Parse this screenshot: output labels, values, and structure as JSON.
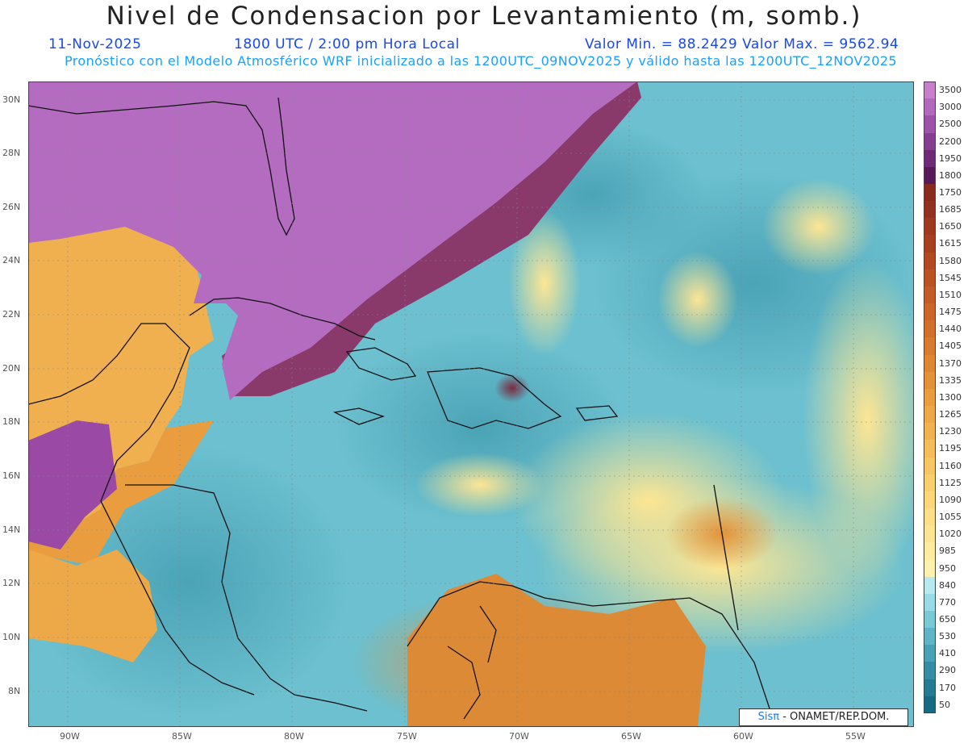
{
  "header": {
    "title": "Nivel de Condensacion por Levantamiento (m, somb.)",
    "date": "11-Nov-2025",
    "time": "1800 UTC / 2:00 pm Hora Local",
    "minmax": "Valor Min. = 88.2429   Valor Max. = 9562.94",
    "forecast": "Pronóstico con el Modelo Atmosférico WRF inicializado a las 1200UTC_09NOV2025 y válido hasta las   1200UTC_12NOV2025"
  },
  "lat_labels": [
    "30N",
    "28N",
    "26N",
    "24N",
    "22N",
    "20N",
    "18N",
    "16N",
    "14N",
    "12N",
    "10N",
    "8N"
  ],
  "lon_labels": [
    "90W",
    "85W",
    "80W",
    "75W",
    "70W",
    "65W",
    "60W",
    "55W"
  ],
  "colorbar": {
    "labels": [
      "3500",
      "3000",
      "2500",
      "2200",
      "1950",
      "1800",
      "1750",
      "1685",
      "1650",
      "1615",
      "1580",
      "1545",
      "1510",
      "1475",
      "1440",
      "1405",
      "1370",
      "1335",
      "1300",
      "1265",
      "1230",
      "1195",
      "1160",
      "1125",
      "1090",
      "1055",
      "1020",
      "985",
      "950",
      "840",
      "770",
      "650",
      "530",
      "410",
      "290",
      "170",
      "50"
    ],
    "colors": [
      "#c77fcc",
      "#b268bd",
      "#9c52a8",
      "#853d8f",
      "#6e2a74",
      "#571a58",
      "#8a2a1e",
      "#94311e",
      "#9e381f",
      "#a84020",
      "#b24922",
      "#bb5224",
      "#c35b26",
      "#cb6528",
      "#d2702b",
      "#d97b2f",
      "#df8633",
      "#e49238",
      "#e99d3f",
      "#eda847",
      "#f1b34f",
      "#f4bd59",
      "#f7c663",
      "#f9cf6e",
      "#fbd77a",
      "#fcdf86",
      "#fde693",
      "#feeca0",
      "#fff2ae",
      "#b9e9f0",
      "#98dbe6",
      "#79c9d6",
      "#5db5c6",
      "#47a2b6",
      "#338ea5",
      "#237b94",
      "#176a84"
    ]
  },
  "credit": {
    "brand": "Sisπ",
    "text": " - ONAMET/REP.DOM."
  }
}
